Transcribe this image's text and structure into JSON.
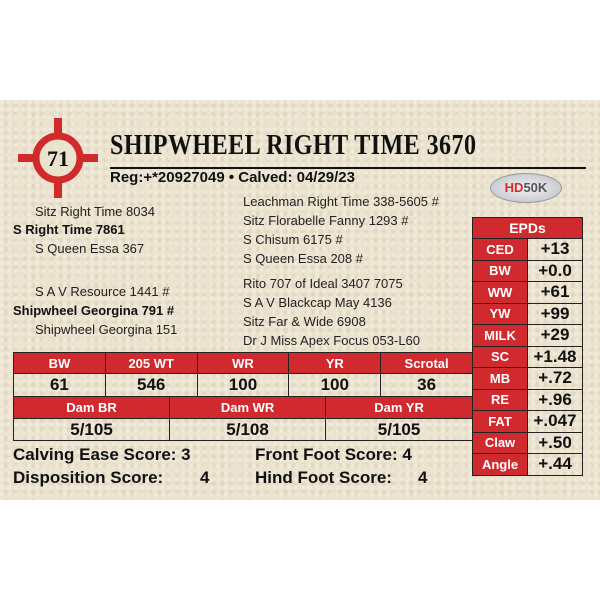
{
  "lot_number": "71",
  "title": "SHIPWHEEL RIGHT TIME 3670",
  "reg_line": "Reg:+*20927049 • Calved: 04/29/23",
  "badge": {
    "hd": "HD",
    "k": "50K"
  },
  "pedigree_left": [
    "Sitz Right Time 8034",
    "S Right Time 7861",
    "S Queen Essa 367",
    "S A V Resource 1441 #",
    "Shipwheel Georgina 791 #",
    "Shipwheel Georgina 151"
  ],
  "pedigree_right": [
    "Leachman Right Time 338-5605 #",
    "Sitz Florabelle Fanny 1293 #",
    "S Chisum 6175 #",
    "S Queen Essa 208 #",
    "Rito 707 of Ideal 3407 7075",
    "S A V Blackcap May 4136",
    "Sitz Far & Wide 6908",
    "Dr J Miss Apex Focus 053-L60"
  ],
  "epds": {
    "header": "EPDs",
    "rows": [
      {
        "label": "CED",
        "value": "+13"
      },
      {
        "label": "BW",
        "value": "+0.0"
      },
      {
        "label": "WW",
        "value": "+61"
      },
      {
        "label": "YW",
        "value": "+99"
      },
      {
        "label": "MILK",
        "value": "+29"
      },
      {
        "label": "SC",
        "value": "+1.48"
      },
      {
        "label": "MB",
        "value": "+.72"
      },
      {
        "label": "RE",
        "value": "+.96"
      },
      {
        "label": "FAT",
        "value": "+.047"
      },
      {
        "label": "Claw",
        "value": "+.50"
      },
      {
        "label": "Angle",
        "value": "+.44"
      }
    ]
  },
  "performance": {
    "headers": [
      "BW",
      "205 WT",
      "WR",
      "YR",
      "Scrotal"
    ],
    "values": [
      "61",
      "546",
      "100",
      "100",
      "36"
    ]
  },
  "dam": {
    "headers": [
      "Dam BR",
      "Dam WR",
      "Dam YR"
    ],
    "values": [
      "5/105",
      "5/108",
      "5/105"
    ]
  },
  "scores": {
    "calving_ease": "Calving Ease Score: 3",
    "disposition": "Disposition Score:",
    "disposition_value": "4",
    "front_foot": "Front Foot Score: 4",
    "hind_foot": "Hind Foot Score:",
    "hind_foot_value": "4"
  },
  "colors": {
    "accent": "#d02a2f",
    "background": "#ece3cf"
  }
}
